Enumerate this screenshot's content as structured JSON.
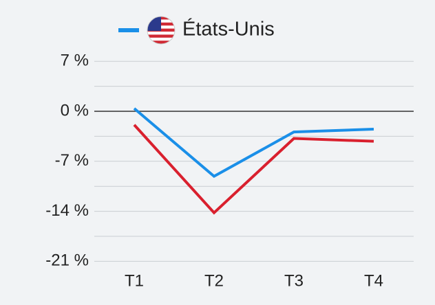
{
  "chart_data": {
    "type": "line",
    "categories": [
      "T1",
      "T2",
      "T3",
      "T4"
    ],
    "series": [
      {
        "name": "États-Unis",
        "color": "#1a8fe8",
        "values": [
          0.4,
          -9.1,
          -2.9,
          -2.5
        ]
      },
      {
        "color": "#d9202e",
        "values": [
          -1.9,
          -14.2,
          -3.8,
          -4.2
        ]
      }
    ],
    "ylim": [
      -21,
      7
    ],
    "yticks": [
      {
        "value": 7,
        "label": "7 %"
      },
      {
        "value": 0,
        "label": "0 %"
      },
      {
        "value": -7,
        "label": "-7 %"
      },
      {
        "value": -14,
        "label": "-14 %"
      },
      {
        "value": -21,
        "label": "-21 %"
      }
    ],
    "minor_yticks": [
      3.5,
      -3.5,
      -10.5,
      -17.5
    ],
    "grid": true
  }
}
